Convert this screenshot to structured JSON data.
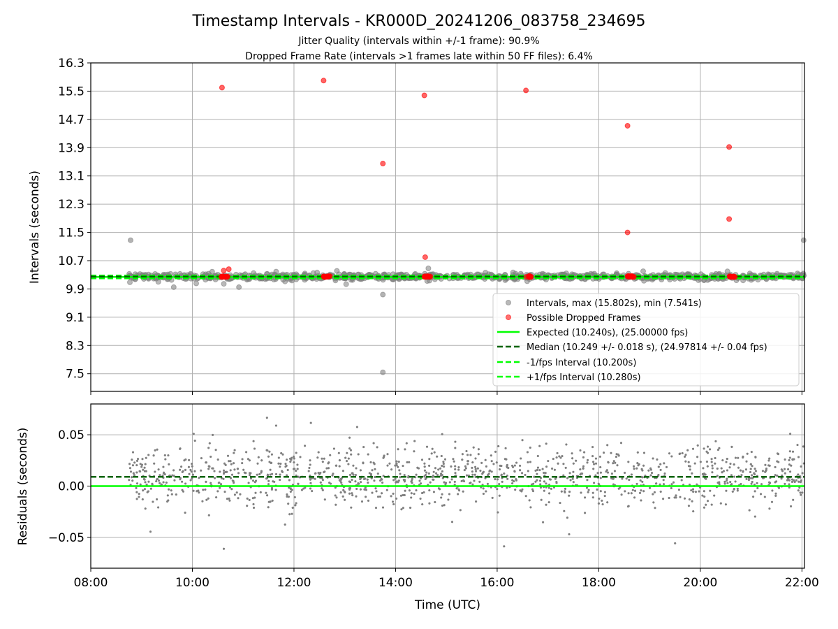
{
  "figure": {
    "title": "Timestamp Intervals - KR000D_20241206_083758_234695",
    "subtitle_1": "Jitter Quality (intervals within +/-1 frame): 90.9%",
    "subtitle_2": "Dropped Frame Rate (intervals >1 frames late within 50 FF files): 6.4%"
  },
  "colors": {
    "intervals": "#808080",
    "dropped": "#ff0000",
    "expected": "#00ff00",
    "median": "#006400",
    "fps_band": "#00ff00",
    "grid": "#b0b0b0"
  },
  "chart_data": [
    {
      "type": "scatter",
      "ylabel": "Intervals (seconds)",
      "xlim": [
        "08:00",
        "22:03"
      ],
      "ylim": [
        7.0,
        16.3
      ],
      "xticks": [
        "08:00",
        "10:00",
        "12:00",
        "14:00",
        "16:00",
        "18:00",
        "20:00",
        "22:00"
      ],
      "yticks": [
        "7.5",
        "8.3",
        "9.1",
        "9.9",
        "10.7",
        "11.5",
        "12.3",
        "13.1",
        "13.9",
        "14.7",
        "15.5",
        "16.3"
      ],
      "grid": true,
      "legend_position": "lower right",
      "legend": {
        "intervals": "Intervals, max (15.802s), min (7.541s)",
        "dropped": "Possible Dropped Frames",
        "expected": "Expected (10.240s), (25.00000 fps)",
        "median": "Median (10.249 +/- 0.018 s), (24.97814 +/- 0.04 fps)",
        "minus_fps": "-1/fps Interval (10.200s)",
        "plus_fps": "+1/fps Interval (10.280s)"
      },
      "reference_lines": {
        "expected": 10.24,
        "median": 10.249,
        "minus_fps": 10.2,
        "plus_fps": 10.28
      },
      "series": [
        {
          "name": "Intervals, max (15.802s), min (7.541s)",
          "note": "dense band of ~10.10–10.45 s intervals from 08:45 to 22:03",
          "outliers": [
            {
              "x": "08:47",
              "y": 11.28
            },
            {
              "x": "13:45",
              "y": 9.74
            },
            {
              "x": "13:45",
              "y": 7.54
            },
            {
              "x": "22:02",
              "y": 11.28
            },
            {
              "x": "09:38",
              "y": 9.95
            },
            {
              "x": "10:55",
              "y": 9.95
            }
          ]
        },
        {
          "name": "Possible Dropped Frames",
          "values": [
            {
              "x": "10:35",
              "y": 15.6
            },
            {
              "x": "10:37",
              "y": 10.42
            },
            {
              "x": "10:43",
              "y": 10.46
            },
            {
              "x": "12:35",
              "y": 15.8
            },
            {
              "x": "13:45",
              "y": 13.45
            },
            {
              "x": "14:34",
              "y": 15.38
            },
            {
              "x": "14:35",
              "y": 10.8
            },
            {
              "x": "16:34",
              "y": 15.52
            },
            {
              "x": "18:34",
              "y": 14.52
            },
            {
              "x": "18:34",
              "y": 11.5
            },
            {
              "x": "20:34",
              "y": 13.92
            },
            {
              "x": "20:34",
              "y": 11.88
            }
          ],
          "clusters_near_10_25": [
            "10:34-10:42",
            "12:34-12:43",
            "14:34-14:42",
            "16:34-16:42",
            "18:34-18:42",
            "20:34-20:42"
          ]
        }
      ]
    },
    {
      "type": "scatter",
      "xlabel": "Time (UTC)",
      "ylabel": "Residuals (seconds)",
      "xlim": [
        "08:00",
        "22:03"
      ],
      "ylim": [
        -0.08,
        0.08
      ],
      "xticks": [
        "08:00",
        "10:00",
        "12:00",
        "14:00",
        "16:00",
        "18:00",
        "20:00",
        "22:00"
      ],
      "yticks": [
        "0.05",
        "0.00",
        "−0.05"
      ],
      "grid": true,
      "reference_lines": {
        "zero": 0.0,
        "median_residual": 0.009
      },
      "series": [
        {
          "name": "Residuals",
          "note": "~3000 points spanning 08:45–22:03, spread roughly −0.05 to +0.05 s, clipped at ±0.08"
        }
      ]
    }
  ]
}
